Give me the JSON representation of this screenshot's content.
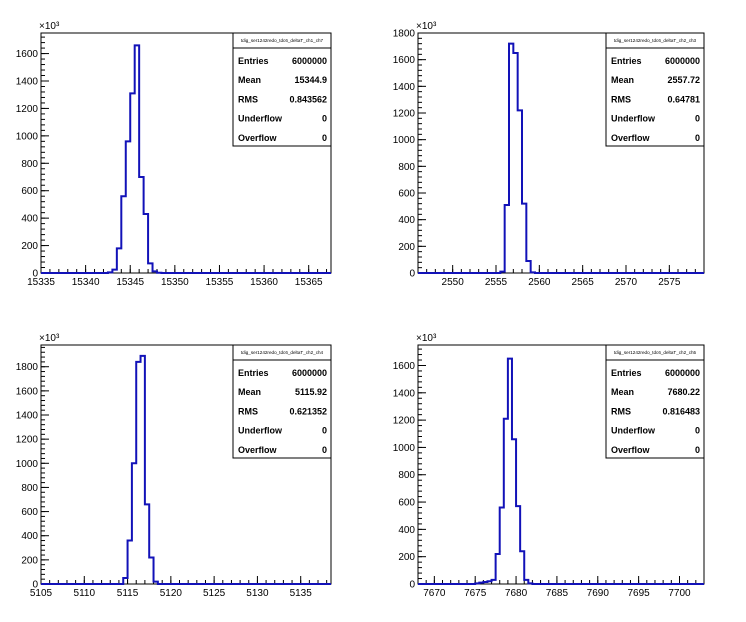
{
  "chart_data": [
    {
      "type": "histogram",
      "title": "tdig_ser1242redo_tdc6_deltaT_ch1_ch7",
      "exponent_label": "×10³",
      "xlim": [
        15335,
        15367.5
      ],
      "ylim": [
        0,
        1750
      ],
      "xticks": [
        15335,
        15340,
        15345,
        15350,
        15355,
        15360,
        15365
      ],
      "yticks": [
        0,
        200,
        400,
        600,
        800,
        1000,
        1200,
        1400,
        1600
      ],
      "bin_width": 0.5,
      "bin_start": 15342.5,
      "values": [
        5,
        25,
        180,
        560,
        960,
        1310,
        1660,
        700,
        430,
        70,
        12,
        2
      ],
      "stats": [
        {
          "label": "Entries",
          "value": "6000000"
        },
        {
          "label": "Mean",
          "value": "15344.9"
        },
        {
          "label": "RMS",
          "value": "0.843562"
        },
        {
          "label": "Underflow",
          "value": "0"
        },
        {
          "label": "Overflow",
          "value": "0"
        }
      ]
    },
    {
      "type": "histogram",
      "title": "tdig_ser1242redo_tdc6_deltaT_ch2_ch3",
      "exponent_label": "×10³",
      "xlim": [
        2546,
        2579
      ],
      "ylim": [
        0,
        1800
      ],
      "xticks": [
        2550,
        2555,
        2560,
        2565,
        2570,
        2575
      ],
      "yticks": [
        0,
        200,
        400,
        600,
        800,
        1000,
        1200,
        1400,
        1600,
        1800
      ],
      "bin_width": 0.5,
      "bin_start": 2555.5,
      "values": [
        10,
        510,
        1720,
        1650,
        1220,
        520,
        90,
        5
      ],
      "stats": [
        {
          "label": "Entries",
          "value": "6000000"
        },
        {
          "label": "Mean",
          "value": "2557.72"
        },
        {
          "label": "RMS",
          "value": "0.64781"
        },
        {
          "label": "Underflow",
          "value": "0"
        },
        {
          "label": "Overflow",
          "value": "0"
        }
      ]
    },
    {
      "type": "histogram",
      "title": "tdig_ser1242redo_tdc6_deltaT_ch2_ch4",
      "exponent_label": "×10³",
      "xlim": [
        5105,
        5138.5
      ],
      "ylim": [
        0,
        1980
      ],
      "xticks": [
        5105,
        5110,
        5115,
        5120,
        5125,
        5130,
        5135
      ],
      "yticks": [
        0,
        200,
        400,
        600,
        800,
        1000,
        1200,
        1400,
        1600,
        1800
      ],
      "bin_width": 0.5,
      "bin_start": 5114.5,
      "values": [
        50,
        360,
        1000,
        1840,
        1890,
        660,
        220,
        20
      ],
      "stats": [
        {
          "label": "Entries",
          "value": "6000000"
        },
        {
          "label": "Mean",
          "value": "5115.92"
        },
        {
          "label": "RMS",
          "value": "0.621352"
        },
        {
          "label": "Underflow",
          "value": "0"
        },
        {
          "label": "Overflow",
          "value": "0"
        }
      ]
    },
    {
      "type": "histogram",
      "title": "tdig_ser1242redo_tdc6_deltaT_ch2_ch5",
      "exponent_label": "×10³",
      "xlim": [
        7668,
        7703
      ],
      "ylim": [
        0,
        1750
      ],
      "xticks": [
        7670,
        7675,
        7680,
        7685,
        7690,
        7695,
        7700
      ],
      "yticks": [
        0,
        200,
        400,
        600,
        800,
        1000,
        1200,
        1400,
        1600
      ],
      "bin_width": 0.5,
      "bin_start": 7675,
      "values": [
        5,
        10,
        15,
        20,
        30,
        220,
        560,
        1210,
        1650,
        1060,
        570,
        240,
        30,
        5
      ],
      "stats": [
        {
          "label": "Entries",
          "value": "6000000"
        },
        {
          "label": "Mean",
          "value": "7680.22"
        },
        {
          "label": "RMS",
          "value": "0.816483"
        },
        {
          "label": "Underflow",
          "value": "0"
        },
        {
          "label": "Overflow",
          "value": "0"
        }
      ]
    }
  ]
}
